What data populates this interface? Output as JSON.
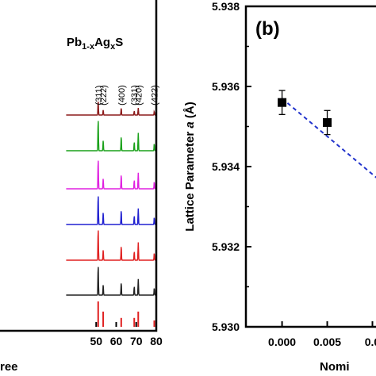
{
  "chart_data": [
    {
      "type": "line",
      "panel_label": "",
      "title": "Pb1-xAgxS",
      "title_parts": [
        "Pb",
        "1-x",
        "Ag",
        "x",
        "S"
      ],
      "xlabel": "ree",
      "ylabel": "",
      "xlim": [
        0,
        80
      ],
      "xticks": [
        "50",
        "60",
        "70",
        "80"
      ],
      "peak_labels": [
        {
          "hkl": "(311)",
          "x": 51.0
        },
        {
          "hkl": "(222)",
          "x": 53.5
        },
        {
          "hkl": "(400)",
          "x": 62.5
        },
        {
          "hkl": "(331)",
          "x": 69.0
        },
        {
          "hkl": "(420)",
          "x": 71.0
        },
        {
          "hkl": "(422)",
          "x": 79.0
        }
      ],
      "series": [
        {
          "color": "#8b1a1a",
          "peaks": [
            {
              "x": 51.0,
              "h": 0.4
            },
            {
              "x": 53.5,
              "h": 0.15
            },
            {
              "x": 62.5,
              "h": 0.2
            },
            {
              "x": 69.0,
              "h": 0.12
            },
            {
              "x": 71.0,
              "h": 0.2
            },
            {
              "x": 79.0,
              "h": 0.1
            }
          ]
        },
        {
          "color": "#1aa11a",
          "peaks": [
            {
              "x": 51.0,
              "h": 0.9
            },
            {
              "x": 53.5,
              "h": 0.3
            },
            {
              "x": 62.5,
              "h": 0.4
            },
            {
              "x": 69.0,
              "h": 0.25
            },
            {
              "x": 71.0,
              "h": 0.5
            },
            {
              "x": 79.0,
              "h": 0.2
            }
          ]
        },
        {
          "color": "#e020e0",
          "peaks": [
            {
              "x": 51.0,
              "h": 0.85
            },
            {
              "x": 53.5,
              "h": 0.3
            },
            {
              "x": 62.5,
              "h": 0.4
            },
            {
              "x": 69.0,
              "h": 0.25
            },
            {
              "x": 71.0,
              "h": 0.45
            },
            {
              "x": 79.0,
              "h": 0.2
            }
          ]
        },
        {
          "color": "#2020d0",
          "peaks": [
            {
              "x": 51.0,
              "h": 0.85
            },
            {
              "x": 53.5,
              "h": 0.35
            },
            {
              "x": 62.5,
              "h": 0.4
            },
            {
              "x": 69.0,
              "h": 0.25
            },
            {
              "x": 71.0,
              "h": 0.45
            },
            {
              "x": 79.0,
              "h": 0.2
            }
          ]
        },
        {
          "color": "#e02020",
          "peaks": [
            {
              "x": 51.0,
              "h": 0.9
            },
            {
              "x": 53.5,
              "h": 0.3
            },
            {
              "x": 62.5,
              "h": 0.4
            },
            {
              "x": 69.0,
              "h": 0.25
            },
            {
              "x": 71.0,
              "h": 0.5
            },
            {
              "x": 79.0,
              "h": 0.2
            }
          ]
        },
        {
          "color": "#202020",
          "peaks": [
            {
              "x": 51.0,
              "h": 0.85
            },
            {
              "x": 53.5,
              "h": 0.3
            },
            {
              "x": 62.5,
              "h": 0.35
            },
            {
              "x": 69.0,
              "h": 0.25
            },
            {
              "x": 71.0,
              "h": 0.45
            },
            {
              "x": 79.0,
              "h": 0.2
            }
          ]
        }
      ],
      "reference_sticks": {
        "color": "#e02020",
        "peaks": [
          {
            "x": 51.0,
            "h": 1.0
          },
          {
            "x": 53.5,
            "h": 0.6
          },
          {
            "x": 62.5,
            "h": 0.35
          },
          {
            "x": 69.0,
            "h": 0.35
          },
          {
            "x": 71.0,
            "h": 0.6
          },
          {
            "x": 79.0,
            "h": 0.25
          }
        ]
      }
    },
    {
      "type": "scatter",
      "panel_label": "(b)",
      "title": "",
      "xlabel": "Nomi",
      "ylabel": "Lattice Parameter a (Å)",
      "ylabel_parts": [
        "Lattice Parameter ",
        "a",
        " (Å)"
      ],
      "xlim": [
        -0.004,
        0.0118
      ],
      "ylim": [
        5.93,
        5.938
      ],
      "xticks": [
        "0.000",
        "0.005",
        "0.0"
      ],
      "yticks": [
        "5.930",
        "5.932",
        "5.934",
        "5.936",
        "5.938"
      ],
      "points": [
        {
          "x": 0.0,
          "y": 5.9356,
          "err": 0.0003
        },
        {
          "x": 0.005,
          "y": 5.9351,
          "err": 0.0003
        }
      ],
      "fit_line": {
        "x": [
          0.0,
          0.0118
        ],
        "y": [
          5.9357,
          5.9336
        ],
        "color": "#2233cc",
        "style": "dashed"
      }
    }
  ]
}
